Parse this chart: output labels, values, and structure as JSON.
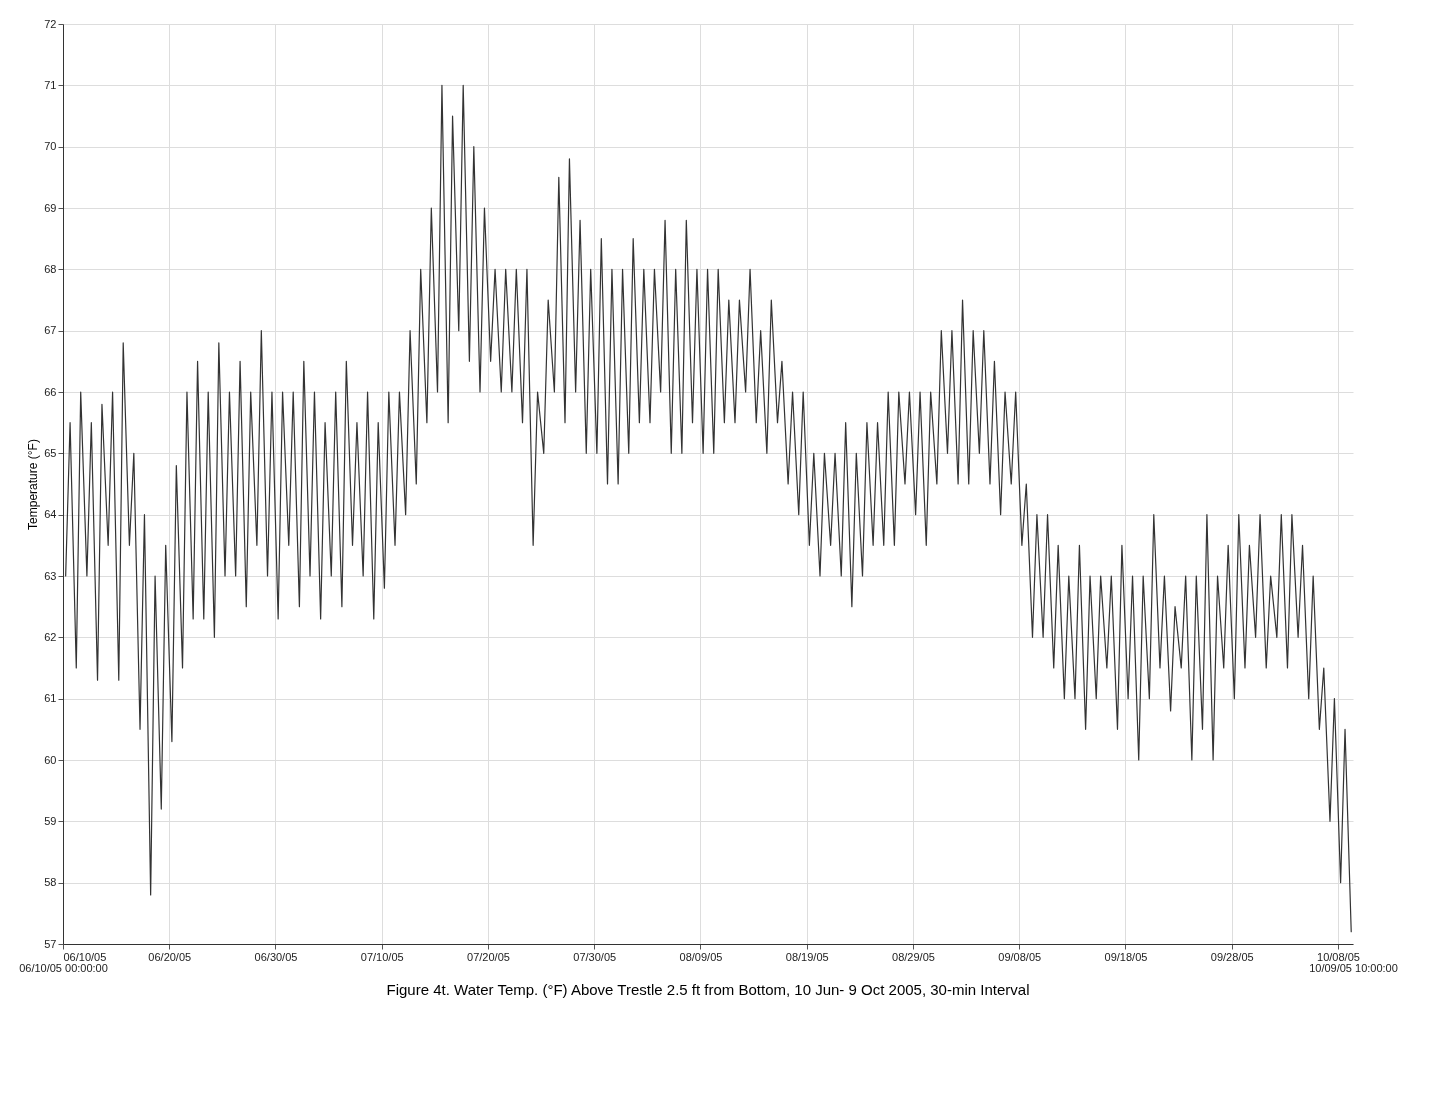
{
  "chart_data": {
    "type": "line",
    "title": "Figure 4t. Water Temp. (°F) Above Trestle 2.5 ft from Bottom, 10 Jun- 9 Oct 2005, 30-min Interval",
    "ylabel": "Temperature (°F)",
    "x": [
      "2005-06-10T06:00",
      "2005-06-10T16:00",
      "2005-06-11T06:00",
      "2005-06-11T16:00",
      "2005-06-12T06:00",
      "2005-06-12T16:00",
      "2005-06-13T06:00",
      "2005-06-13T16:00",
      "2005-06-14T06:00",
      "2005-06-14T16:00",
      "2005-06-15T06:00",
      "2005-06-15T16:00",
      "2005-06-16T06:00",
      "2005-06-16T16:00",
      "2005-06-17T06:00",
      "2005-06-17T16:00",
      "2005-06-18T06:00",
      "2005-06-18T16:00",
      "2005-06-19T06:00",
      "2005-06-19T16:00",
      "2005-06-20T06:00",
      "2005-06-20T16:00",
      "2005-06-21T06:00",
      "2005-06-21T16:00",
      "2005-06-22T06:00",
      "2005-06-22T16:00",
      "2005-06-23T06:00",
      "2005-06-23T16:00",
      "2005-06-24T06:00",
      "2005-06-24T16:00",
      "2005-06-25T06:00",
      "2005-06-25T16:00",
      "2005-06-26T06:00",
      "2005-06-26T16:00",
      "2005-06-27T06:00",
      "2005-06-27T16:00",
      "2005-06-28T06:00",
      "2005-06-28T16:00",
      "2005-06-29T06:00",
      "2005-06-29T16:00",
      "2005-06-30T06:00",
      "2005-06-30T16:00",
      "2005-07-01T06:00",
      "2005-07-01T16:00",
      "2005-07-02T06:00",
      "2005-07-02T16:00",
      "2005-07-03T06:00",
      "2005-07-03T16:00",
      "2005-07-04T06:00",
      "2005-07-04T16:00",
      "2005-07-05T06:00",
      "2005-07-05T16:00",
      "2005-07-06T06:00",
      "2005-07-06T16:00",
      "2005-07-07T06:00",
      "2005-07-07T16:00",
      "2005-07-08T06:00",
      "2005-07-08T16:00",
      "2005-07-09T06:00",
      "2005-07-09T16:00",
      "2005-07-10T06:00",
      "2005-07-10T16:00",
      "2005-07-11T06:00",
      "2005-07-11T16:00",
      "2005-07-12T06:00",
      "2005-07-12T16:00",
      "2005-07-13T06:00",
      "2005-07-13T16:00",
      "2005-07-14T06:00",
      "2005-07-14T16:00",
      "2005-07-15T06:00",
      "2005-07-15T16:00",
      "2005-07-16T06:00",
      "2005-07-16T16:00",
      "2005-07-17T06:00",
      "2005-07-17T16:00",
      "2005-07-18T06:00",
      "2005-07-18T16:00",
      "2005-07-19T06:00",
      "2005-07-19T16:00",
      "2005-07-20T06:00",
      "2005-07-20T16:00",
      "2005-07-21T06:00",
      "2005-07-21T16:00",
      "2005-07-22T06:00",
      "2005-07-22T16:00",
      "2005-07-23T06:00",
      "2005-07-23T16:00",
      "2005-07-24T06:00",
      "2005-07-24T16:00",
      "2005-07-25T06:00",
      "2005-07-25T16:00",
      "2005-07-26T06:00",
      "2005-07-26T16:00",
      "2005-07-27T06:00",
      "2005-07-27T16:00",
      "2005-07-28T06:00",
      "2005-07-28T16:00",
      "2005-07-29T06:00",
      "2005-07-29T16:00",
      "2005-07-30T06:00",
      "2005-07-30T16:00",
      "2005-07-31T06:00",
      "2005-07-31T16:00",
      "2005-08-01T06:00",
      "2005-08-01T16:00",
      "2005-08-02T06:00",
      "2005-08-02T16:00",
      "2005-08-03T06:00",
      "2005-08-03T16:00",
      "2005-08-04T06:00",
      "2005-08-04T16:00",
      "2005-08-05T06:00",
      "2005-08-05T16:00",
      "2005-08-06T06:00",
      "2005-08-06T16:00",
      "2005-08-07T06:00",
      "2005-08-07T16:00",
      "2005-08-08T06:00",
      "2005-08-08T16:00",
      "2005-08-09T06:00",
      "2005-08-09T16:00",
      "2005-08-10T06:00",
      "2005-08-10T16:00",
      "2005-08-11T06:00",
      "2005-08-11T16:00",
      "2005-08-12T06:00",
      "2005-08-12T16:00",
      "2005-08-13T06:00",
      "2005-08-13T16:00",
      "2005-08-14T06:00",
      "2005-08-14T16:00",
      "2005-08-15T06:00",
      "2005-08-15T16:00",
      "2005-08-16T06:00",
      "2005-08-16T16:00",
      "2005-08-17T06:00",
      "2005-08-17T16:00",
      "2005-08-18T06:00",
      "2005-08-18T16:00",
      "2005-08-19T06:00",
      "2005-08-19T16:00",
      "2005-08-20T06:00",
      "2005-08-20T16:00",
      "2005-08-21T06:00",
      "2005-08-21T16:00",
      "2005-08-22T06:00",
      "2005-08-22T16:00",
      "2005-08-23T06:00",
      "2005-08-23T16:00",
      "2005-08-24T06:00",
      "2005-08-24T16:00",
      "2005-08-25T06:00",
      "2005-08-25T16:00",
      "2005-08-26T06:00",
      "2005-08-26T16:00",
      "2005-08-27T06:00",
      "2005-08-27T16:00",
      "2005-08-28T06:00",
      "2005-08-28T16:00",
      "2005-08-29T06:00",
      "2005-08-29T16:00",
      "2005-08-30T06:00",
      "2005-08-30T16:00",
      "2005-08-31T06:00",
      "2005-08-31T16:00",
      "2005-09-01T06:00",
      "2005-09-01T16:00",
      "2005-09-02T06:00",
      "2005-09-02T16:00",
      "2005-09-03T06:00",
      "2005-09-03T16:00",
      "2005-09-04T06:00",
      "2005-09-04T16:00",
      "2005-09-05T06:00",
      "2005-09-05T16:00",
      "2005-09-06T06:00",
      "2005-09-06T16:00",
      "2005-09-07T06:00",
      "2005-09-07T16:00",
      "2005-09-08T06:00",
      "2005-09-08T16:00",
      "2005-09-09T06:00",
      "2005-09-09T16:00",
      "2005-09-10T06:00",
      "2005-09-10T16:00",
      "2005-09-11T06:00",
      "2005-09-11T16:00",
      "2005-09-12T06:00",
      "2005-09-12T16:00",
      "2005-09-13T06:00",
      "2005-09-13T16:00",
      "2005-09-14T06:00",
      "2005-09-14T16:00",
      "2005-09-15T06:00",
      "2005-09-15T16:00",
      "2005-09-16T06:00",
      "2005-09-16T16:00",
      "2005-09-17T06:00",
      "2005-09-17T16:00",
      "2005-09-18T06:00",
      "2005-09-18T16:00",
      "2005-09-19T06:00",
      "2005-09-19T16:00",
      "2005-09-20T06:00",
      "2005-09-20T16:00",
      "2005-09-21T06:00",
      "2005-09-21T16:00",
      "2005-09-22T06:00",
      "2005-09-22T16:00",
      "2005-09-23T06:00",
      "2005-09-23T16:00",
      "2005-09-24T06:00",
      "2005-09-24T16:00",
      "2005-09-25T06:00",
      "2005-09-25T16:00",
      "2005-09-26T06:00",
      "2005-09-26T16:00",
      "2005-09-27T06:00",
      "2005-09-27T16:00",
      "2005-09-28T06:00",
      "2005-09-28T16:00",
      "2005-09-29T06:00",
      "2005-09-29T16:00",
      "2005-09-30T06:00",
      "2005-09-30T16:00",
      "2005-10-01T06:00",
      "2005-10-01T16:00",
      "2005-10-02T06:00",
      "2005-10-02T16:00",
      "2005-10-03T06:00",
      "2005-10-03T16:00",
      "2005-10-04T06:00",
      "2005-10-04T16:00",
      "2005-10-05T06:00",
      "2005-10-05T16:00",
      "2005-10-06T06:00",
      "2005-10-06T16:00",
      "2005-10-07T06:00",
      "2005-10-07T16:00",
      "2005-10-08T06:00",
      "2005-10-08T16:00",
      "2005-10-09T06:00"
    ],
    "series": [
      {
        "color": "#333333",
        "values": [
          63.0,
          65.5,
          61.5,
          66.0,
          63.0,
          65.5,
          61.3,
          65.8,
          63.5,
          66.0,
          61.3,
          66.8,
          63.5,
          65.0,
          60.5,
          64.0,
          57.8,
          63.0,
          59.2,
          63.5,
          60.3,
          64.8,
          61.5,
          66.0,
          62.3,
          66.5,
          62.3,
          66.0,
          62.0,
          66.8,
          63.0,
          66.0,
          63.0,
          66.5,
          62.5,
          66.0,
          63.5,
          67.0,
          63.0,
          66.0,
          62.3,
          66.0,
          63.5,
          66.0,
          62.5,
          66.5,
          63.0,
          66.0,
          62.3,
          65.5,
          63.0,
          66.0,
          62.5,
          66.5,
          63.5,
          65.5,
          63.0,
          66.0,
          62.3,
          65.5,
          62.8,
          66.0,
          63.5,
          66.0,
          64.0,
          67.0,
          64.5,
          68.0,
          65.5,
          69.0,
          66.0,
          71.0,
          65.5,
          70.5,
          67.0,
          71.0,
          66.5,
          70.0,
          66.0,
          69.0,
          66.5,
          68.0,
          66.0,
          68.0,
          66.0,
          68.0,
          65.5,
          68.0,
          63.5,
          66.0,
          65.0,
          67.5,
          66.0,
          69.5,
          65.5,
          69.8,
          66.0,
          68.8,
          65.0,
          68.0,
          65.0,
          68.5,
          64.5,
          68.0,
          64.5,
          68.0,
          65.0,
          68.5,
          65.5,
          68.0,
          65.5,
          68.0,
          66.0,
          68.8,
          65.0,
          68.0,
          65.0,
          68.8,
          65.5,
          68.0,
          65.0,
          68.0,
          65.0,
          68.0,
          65.5,
          67.5,
          65.5,
          67.5,
          66.0,
          68.0,
          65.5,
          67.0,
          65.0,
          67.5,
          65.5,
          66.5,
          64.5,
          66.0,
          64.0,
          66.0,
          63.5,
          65.0,
          63.0,
          65.0,
          63.5,
          65.0,
          63.0,
          65.5,
          62.5,
          65.0,
          63.0,
          65.5,
          63.5,
          65.5,
          63.5,
          66.0,
          63.5,
          66.0,
          64.5,
          66.0,
          64.0,
          66.0,
          63.5,
          66.0,
          64.5,
          67.0,
          65.0,
          67.0,
          64.5,
          67.5,
          64.5,
          67.0,
          65.0,
          67.0,
          64.5,
          66.5,
          64.0,
          66.0,
          64.5,
          66.0,
          63.5,
          64.5,
          62.0,
          64.0,
          62.0,
          64.0,
          61.5,
          63.5,
          61.0,
          63.0,
          61.0,
          63.5,
          60.5,
          63.0,
          61.0,
          63.0,
          61.5,
          63.0,
          60.5,
          63.5,
          61.0,
          63.0,
          60.0,
          63.0,
          61.0,
          64.0,
          61.5,
          63.0,
          60.8,
          62.5,
          61.5,
          63.0,
          60.0,
          63.0,
          60.5,
          64.0,
          60.0,
          63.0,
          61.5,
          63.5,
          61.0,
          64.0,
          61.5,
          63.5,
          62.0,
          64.0,
          61.5,
          63.0,
          62.0,
          64.0,
          61.5,
          64.0,
          62.0,
          63.5,
          61.0,
          63.0,
          60.5,
          61.5,
          59.0,
          61.0,
          58.0,
          60.5,
          57.2
        ]
      }
    ],
    "xlim": [
      "2005-06-10T00:00",
      "2005-10-09T10:00"
    ],
    "xticks": [
      {
        "value": "2005-06-10",
        "label": "06/10/05"
      },
      {
        "value": "2005-06-20",
        "label": "06/20/05"
      },
      {
        "value": "2005-06-30",
        "label": "06/30/05"
      },
      {
        "value": "2005-07-10",
        "label": "07/10/05"
      },
      {
        "value": "2005-07-20",
        "label": "07/20/05"
      },
      {
        "value": "2005-07-30",
        "label": "07/30/05"
      },
      {
        "value": "2005-08-09",
        "label": "08/09/05"
      },
      {
        "value": "2005-08-19",
        "label": "08/19/05"
      },
      {
        "value": "2005-08-29",
        "label": "08/29/05"
      },
      {
        "value": "2005-09-08",
        "label": "09/08/05"
      },
      {
        "value": "2005-09-18",
        "label": "09/18/05"
      },
      {
        "value": "2005-09-28",
        "label": "09/28/05"
      },
      {
        "value": "2005-10-08",
        "label": "10/08/05"
      }
    ],
    "x2lim": [
      "2005-06-10T00:00",
      "2005-10-09T10:00"
    ],
    "x2ticks": [
      {
        "value": "2005-06-10T00:00",
        "label": "06/10/05 00:00:00"
      },
      {
        "value": "2005-10-09T10:00",
        "label": "10/09/05 10:00:00"
      }
    ],
    "ylim": [
      57,
      72
    ],
    "yticks": [
      57,
      58,
      59,
      60,
      61,
      62,
      63,
      64,
      65,
      66,
      67,
      68,
      69,
      70,
      71,
      72
    ],
    "grid": true,
    "marker": "none",
    "line_style": "solid"
  }
}
